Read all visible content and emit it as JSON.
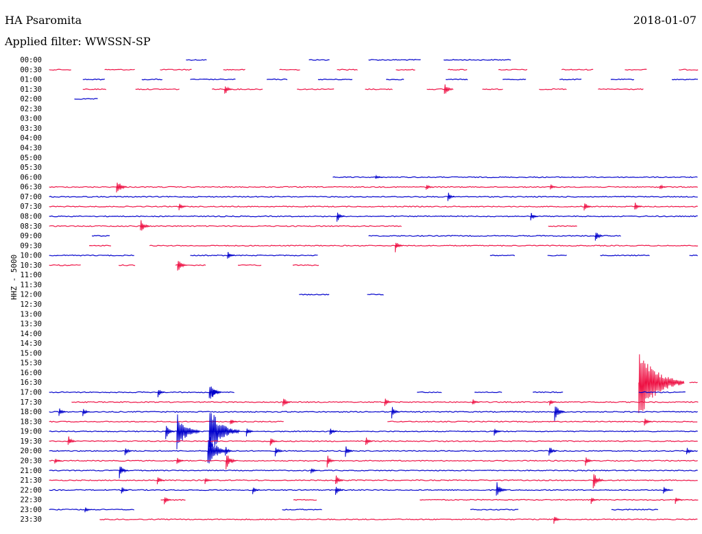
{
  "chart_data": {
    "type": "line",
    "title": "HA Psaromita",
    "date": "2018-01-07",
    "subtitle": "Applied filter: WWSSN-SP",
    "ylabel": "HHZ - 5000",
    "colors": {
      "even": "#0000cc",
      "odd": "#ee1144"
    },
    "rows": [
      {
        "label": "00:00",
        "segments": [
          [
            0.265,
            0.295
          ],
          [
            0.44,
            0.47
          ],
          [
            0.525,
            0.6
          ],
          [
            0.632,
            0.728
          ]
        ],
        "events": []
      },
      {
        "label": "00:30",
        "segments": [
          [
            0.07,
            0.103
          ],
          [
            0.149,
            0.192
          ],
          [
            0.228,
            0.274
          ],
          [
            0.318,
            0.35
          ],
          [
            0.398,
            0.428
          ],
          [
            0.48,
            0.51
          ],
          [
            0.564,
            0.593
          ],
          [
            0.638,
            0.666
          ],
          [
            0.71,
            0.752
          ],
          [
            0.8,
            0.845
          ],
          [
            0.89,
            0.922
          ],
          [
            0.967,
            0.995
          ]
        ],
        "events": []
      },
      {
        "label": "01:00",
        "segments": [
          [
            0.118,
            0.15
          ],
          [
            0.202,
            0.233
          ],
          [
            0.271,
            0.336
          ],
          [
            0.38,
            0.41
          ],
          [
            0.453,
            0.503
          ],
          [
            0.55,
            0.577
          ],
          [
            0.635,
            0.667
          ],
          [
            0.716,
            0.75
          ],
          [
            0.797,
            0.83
          ],
          [
            0.87,
            0.904
          ],
          [
            0.957,
            0.995
          ]
        ],
        "events": []
      },
      {
        "label": "01:30",
        "segments": [
          [
            0.118,
            0.152
          ],
          [
            0.193,
            0.256
          ],
          [
            0.302,
            0.375
          ],
          [
            0.423,
            0.476
          ],
          [
            0.52,
            0.561
          ],
          [
            0.608,
            0.637
          ],
          [
            0.687,
            0.718
          ],
          [
            0.768,
            0.808
          ],
          [
            0.852,
            0.918
          ]
        ],
        "events": [
          [
            0.32,
            10
          ],
          [
            0.633,
            12
          ]
        ]
      },
      {
        "label": "02:00",
        "segments": [
          [
            0.106,
            0.141
          ]
        ],
        "events": []
      },
      {
        "label": "02:30",
        "segments": [],
        "events": []
      },
      {
        "label": "03:00",
        "segments": [],
        "events": []
      },
      {
        "label": "03:30",
        "segments": [],
        "events": []
      },
      {
        "label": "04:00",
        "segments": [],
        "events": []
      },
      {
        "label": "04:30",
        "segments": [],
        "events": []
      },
      {
        "label": "05:00",
        "segments": [],
        "events": []
      },
      {
        "label": "05:30",
        "segments": [],
        "events": []
      },
      {
        "label": "06:00",
        "segments": [
          [
            0.474,
            0.995
          ]
        ],
        "events": [
          [
            0.535,
            4
          ]
        ]
      },
      {
        "label": "06:30",
        "segments": [
          [
            0.07,
            0.995
          ]
        ],
        "events": [
          [
            0.166,
            14
          ],
          [
            0.607,
            6
          ],
          [
            0.784,
            5
          ],
          [
            0.94,
            5
          ]
        ]
      },
      {
        "label": "07:00",
        "segments": [
          [
            0.07,
            0.995
          ]
        ],
        "events": [
          [
            0.638,
            8
          ]
        ]
      },
      {
        "label": "07:30",
        "segments": [
          [
            0.07,
            0.995
          ]
        ],
        "events": [
          [
            0.255,
            8
          ],
          [
            0.832,
            9
          ],
          [
            0.904,
            8
          ]
        ]
      },
      {
        "label": "08:00",
        "segments": [
          [
            0.07,
            0.995
          ]
        ],
        "events": [
          [
            0.48,
            10
          ],
          [
            0.756,
            8
          ]
        ]
      },
      {
        "label": "08:30",
        "segments": [
          [
            0.07,
            0.572
          ],
          [
            0.781,
            0.823
          ]
        ],
        "events": [
          [
            0.2,
            12
          ]
        ]
      },
      {
        "label": "09:00",
        "segments": [
          [
            0.131,
            0.158
          ],
          [
            0.525,
            0.885
          ]
        ],
        "events": [
          [
            0.848,
            10
          ]
        ]
      },
      {
        "label": "09:30",
        "segments": [
          [
            0.127,
            0.159
          ],
          [
            0.213,
            0.995
          ]
        ],
        "events": [
          [
            0.563,
            10
          ]
        ]
      },
      {
        "label": "10:00",
        "segments": [
          [
            0.07,
            0.192
          ],
          [
            0.271,
            0.453
          ],
          [
            0.698,
            0.734
          ],
          [
            0.78,
            0.809
          ],
          [
            0.855,
            0.926
          ],
          [
            0.982,
            0.995
          ]
        ],
        "events": [
          [
            0.324,
            8
          ]
        ]
      },
      {
        "label": "10:30",
        "segments": [
          [
            0.07,
            0.115
          ],
          [
            0.169,
            0.193
          ],
          [
            0.25,
            0.293
          ],
          [
            0.339,
            0.373
          ],
          [
            0.417,
            0.455
          ]
        ],
        "events": [
          [
            0.253,
            12
          ]
        ]
      },
      {
        "label": "11:00",
        "segments": [],
        "events": []
      },
      {
        "label": "11:30",
        "segments": [],
        "events": []
      },
      {
        "label": "12:00",
        "segments": [
          [
            0.426,
            0.47
          ],
          [
            0.523,
            0.547
          ]
        ],
        "events": []
      },
      {
        "label": "12:30",
        "segments": [],
        "events": []
      },
      {
        "label": "13:00",
        "segments": [],
        "events": []
      },
      {
        "label": "13:30",
        "segments": [],
        "events": []
      },
      {
        "label": "14:00",
        "segments": [],
        "events": []
      },
      {
        "label": "14:30",
        "segments": [],
        "events": []
      },
      {
        "label": "15:00",
        "segments": [],
        "events": []
      },
      {
        "label": "15:30",
        "segments": [],
        "events": []
      },
      {
        "label": "16:00",
        "segments": [],
        "events": []
      },
      {
        "label": "16:30",
        "segments": [
          [
            0.982,
            0.995
          ]
        ],
        "events": [
          [
            0.91,
            60
          ]
        ]
      },
      {
        "label": "17:00",
        "segments": [
          [
            0.07,
            0.334
          ],
          [
            0.594,
            0.63
          ],
          [
            0.676,
            0.716
          ],
          [
            0.759,
            0.803
          ],
          [
            0.91,
            0.978
          ]
        ],
        "events": [
          [
            0.225,
            8
          ],
          [
            0.298,
            16
          ],
          [
            0.303,
            8
          ]
        ]
      },
      {
        "label": "17:30",
        "segments": [
          [
            0.102,
            0.995
          ]
        ],
        "events": [
          [
            0.403,
            10
          ],
          [
            0.548,
            8
          ],
          [
            0.673,
            6
          ],
          [
            0.783,
            6
          ]
        ]
      },
      {
        "label": "18:00",
        "segments": [
          [
            0.07,
            0.995
          ]
        ],
        "events": [
          [
            0.084,
            8
          ],
          [
            0.118,
            8
          ],
          [
            0.558,
            10
          ],
          [
            0.79,
            14
          ]
        ]
      },
      {
        "label": "18:30",
        "segments": [
          [
            0.07,
            0.405
          ],
          [
            0.552,
            0.995
          ]
        ],
        "events": [
          [
            0.328,
            6
          ],
          [
            0.918,
            8
          ]
        ]
      },
      {
        "label": "19:00",
        "segments": [
          [
            0.07,
            0.995
          ]
        ],
        "events": [
          [
            0.236,
            12
          ],
          [
            0.252,
            30
          ],
          [
            0.298,
            40
          ],
          [
            0.351,
            8
          ],
          [
            0.47,
            8
          ],
          [
            0.704,
            8
          ]
        ]
      },
      {
        "label": "19:30",
        "segments": [
          [
            0.07,
            0.995
          ]
        ],
        "events": [
          [
            0.097,
            10
          ],
          [
            0.385,
            8
          ],
          [
            0.521,
            8
          ]
        ]
      },
      {
        "label": "20:00",
        "segments": [
          [
            0.07,
            0.995
          ]
        ],
        "events": [
          [
            0.178,
            8
          ],
          [
            0.296,
            28
          ],
          [
            0.321,
            8
          ],
          [
            0.392,
            10
          ],
          [
            0.492,
            10
          ],
          [
            0.782,
            10
          ],
          [
            0.978,
            8
          ]
        ]
      },
      {
        "label": "20:30",
        "segments": [
          [
            0.07,
            0.995
          ]
        ],
        "events": [
          [
            0.078,
            6
          ],
          [
            0.252,
            8
          ],
          [
            0.322,
            14
          ],
          [
            0.466,
            10
          ],
          [
            0.834,
            8
          ]
        ]
      },
      {
        "label": "21:00",
        "segments": [
          [
            0.07,
            0.995
          ]
        ],
        "events": [
          [
            0.17,
            12
          ],
          [
            0.443,
            6
          ]
        ]
      },
      {
        "label": "21:30",
        "segments": [
          [
            0.07,
            0.995
          ]
        ],
        "events": [
          [
            0.224,
            8
          ],
          [
            0.292,
            6
          ],
          [
            0.478,
            10
          ],
          [
            0.845,
            14
          ]
        ]
      },
      {
        "label": "22:00",
        "segments": [
          [
            0.07,
            0.959
          ]
        ],
        "events": [
          [
            0.173,
            6
          ],
          [
            0.36,
            6
          ],
          [
            0.478,
            10
          ],
          [
            0.707,
            14
          ],
          [
            0.945,
            8
          ]
        ]
      },
      {
        "label": "22:30",
        "segments": [
          [
            0.229,
            0.266
          ],
          [
            0.418,
            0.452
          ],
          [
            0.598,
            0.995
          ]
        ],
        "events": [
          [
            0.234,
            8
          ],
          [
            0.842,
            6
          ],
          [
            0.962,
            6
          ]
        ]
      },
      {
        "label": "23:00",
        "segments": [
          [
            0.07,
            0.192
          ],
          [
            0.402,
            0.459
          ],
          [
            0.67,
            0.739
          ],
          [
            0.871,
            0.939
          ]
        ],
        "events": [
          [
            0.121,
            5
          ]
        ]
      },
      {
        "label": "23:30",
        "segments": [
          [
            0.142,
            0.995
          ]
        ],
        "events": [
          [
            0.789,
            8
          ]
        ]
      }
    ]
  }
}
